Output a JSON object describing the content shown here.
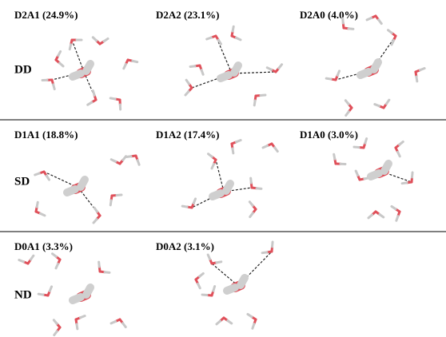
{
  "rows": [
    {
      "label": "DD",
      "panels": [
        {
          "label": "D2A1 (24.9%)"
        },
        {
          "label": "D2A2 (23.1%)"
        },
        {
          "label": "D2A0 (4.0%)"
        }
      ]
    },
    {
      "label": "SD",
      "panels": [
        {
          "label": "D1A1 (18.8%)"
        },
        {
          "label": "D1A2 (17.4%)"
        },
        {
          "label": "D1A0 (3.0%)"
        }
      ]
    },
    {
      "label": "ND",
      "panels": [
        {
          "label": "D0A1 (3.3%)"
        },
        {
          "label": "D0A2 (3.1%)"
        }
      ]
    }
  ]
}
